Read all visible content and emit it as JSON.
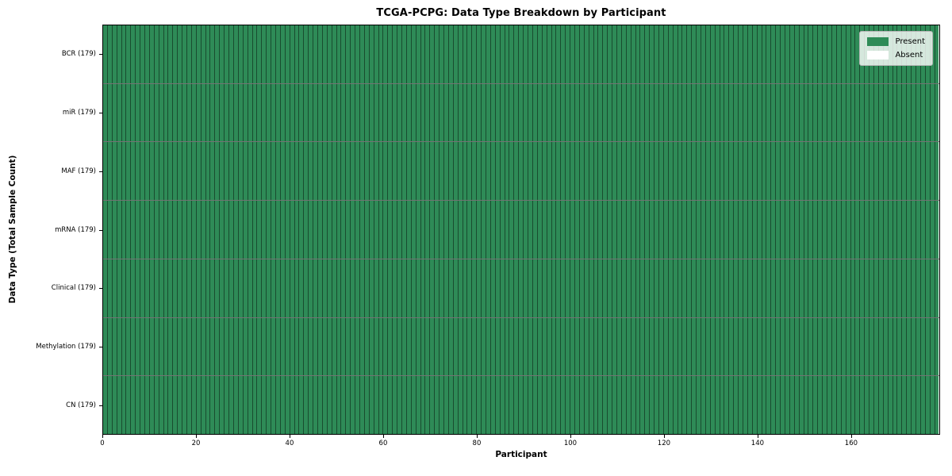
{
  "chart_data": {
    "type": "heatmap",
    "title": "TCGA-PCPG: Data Type Breakdown by Participant",
    "xlabel": "Participant",
    "ylabel": "Data Type (Total Sample Count)",
    "x_range": [
      0,
      179
    ],
    "n_participants": 179,
    "x_ticks": [
      0,
      20,
      40,
      60,
      80,
      100,
      120,
      140,
      160
    ],
    "rows": [
      {
        "label": "BCR (179)",
        "data_type": "BCR",
        "total_samples": 179,
        "present": 179,
        "absent": 0
      },
      {
        "label": "miR (179)",
        "data_type": "miR",
        "total_samples": 179,
        "present": 179,
        "absent": 0
      },
      {
        "label": "MAF (179)",
        "data_type": "MAF",
        "total_samples": 179,
        "present": 179,
        "absent": 0
      },
      {
        "label": "mRNA (179)",
        "data_type": "mRNA",
        "total_samples": 179,
        "present": 179,
        "absent": 0
      },
      {
        "label": "Clinical (179)",
        "data_type": "Clinical",
        "total_samples": 179,
        "present": 179,
        "absent": 0
      },
      {
        "label": "Methylation (179)",
        "data_type": "Methylation",
        "total_samples": 179,
        "present": 179,
        "absent": 0
      },
      {
        "label": "CN (179)",
        "data_type": "CN",
        "total_samples": 179,
        "present": 179,
        "absent": 0
      }
    ],
    "legend": {
      "position": "upper right",
      "items": [
        {
          "label": "Present",
          "color": "#2e8b57"
        },
        {
          "label": "Absent",
          "color": "#ffffff"
        }
      ]
    },
    "colors": {
      "present": "#2e8b57",
      "absent": "#ffffff",
      "cell_edge": "rgba(0,0,0,0.45)",
      "axis": "#000000",
      "background": "#ffffff"
    },
    "grid": false
  }
}
